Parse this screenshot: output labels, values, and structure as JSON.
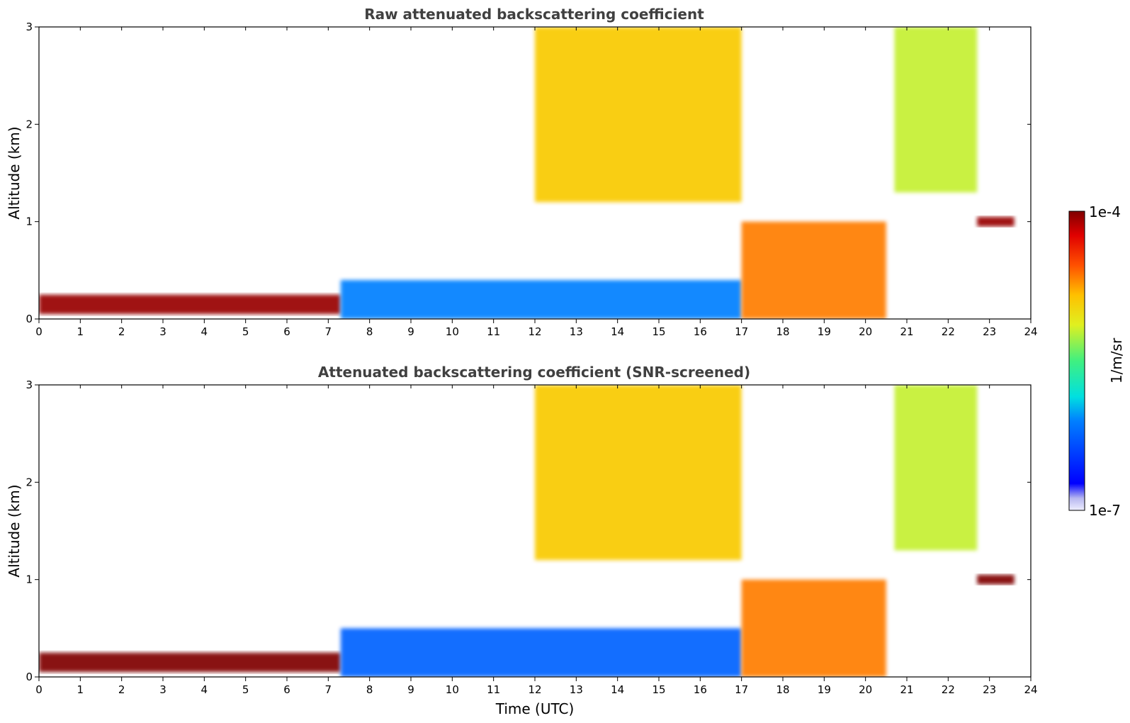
{
  "chart_data": [
    {
      "type": "heatmap",
      "title": "Raw attenuated backscattering coefficient",
      "xlabel": "",
      "ylabel": "Altitude (km)",
      "xlim": [
        0,
        24
      ],
      "ylim": [
        0,
        3
      ],
      "x_ticks": [
        "0",
        "1",
        "2",
        "3",
        "4",
        "5",
        "6",
        "7",
        "8",
        "9",
        "10",
        "11",
        "12",
        "13",
        "14",
        "15",
        "16",
        "17",
        "18",
        "19",
        "20",
        "21",
        "22",
        "23",
        "24"
      ],
      "y_ticks": [
        "0",
        "1",
        "2",
        "3"
      ],
      "grid": false,
      "features": [
        {
          "name": "boundary-layer",
          "x_range": [
            0,
            7.3
          ],
          "y_range": [
            0.05,
            0.25
          ],
          "level": 0.98
        },
        {
          "name": "aerosol-layer",
          "x_range": [
            7.3,
            17
          ],
          "y_range": [
            0,
            0.4
          ],
          "level": 0.3
        },
        {
          "name": "rain-column",
          "x_range": [
            17,
            20.5
          ],
          "y_range": [
            0,
            1.0
          ],
          "level": 0.78
        },
        {
          "name": "upper-cloud",
          "x_range": [
            12,
            17
          ],
          "y_range": [
            1.2,
            3.0
          ],
          "level": 0.7
        },
        {
          "name": "high-cloud",
          "x_range": [
            20.7,
            22.7
          ],
          "y_range": [
            1.3,
            3.0
          ],
          "level": 0.6
        },
        {
          "name": "cloud-base",
          "x_range": [
            22.7,
            23.6
          ],
          "y_range": [
            0.95,
            1.05
          ],
          "level": 0.98
        }
      ]
    },
    {
      "type": "heatmap",
      "title": "Attenuated backscattering coefficient (SNR-screened)",
      "xlabel": "Time (UTC)",
      "ylabel": "Altitude (km)",
      "xlim": [
        0,
        24
      ],
      "ylim": [
        0,
        3
      ],
      "x_ticks": [
        "0",
        "1",
        "2",
        "3",
        "4",
        "5",
        "6",
        "7",
        "8",
        "9",
        "10",
        "11",
        "12",
        "13",
        "14",
        "15",
        "16",
        "17",
        "18",
        "19",
        "20",
        "21",
        "22",
        "23",
        "24"
      ],
      "y_ticks": [
        "0",
        "1",
        "2",
        "3"
      ],
      "grid": false,
      "features": [
        {
          "name": "boundary-layer",
          "x_range": [
            0,
            7.3
          ],
          "y_range": [
            0.05,
            0.25
          ],
          "level": 1.0
        },
        {
          "name": "aerosol-layer",
          "x_range": [
            7.3,
            17
          ],
          "y_range": [
            0,
            0.5
          ],
          "level": 0.25
        },
        {
          "name": "rain-column",
          "x_range": [
            17,
            20.5
          ],
          "y_range": [
            0,
            1.0
          ],
          "level": 0.78
        },
        {
          "name": "upper-cloud",
          "x_range": [
            12,
            17
          ],
          "y_range": [
            1.2,
            3.0
          ],
          "level": 0.7
        },
        {
          "name": "high-cloud",
          "x_range": [
            20.7,
            22.7
          ],
          "y_range": [
            1.3,
            3.0
          ],
          "level": 0.6
        },
        {
          "name": "cloud-base",
          "x_range": [
            22.7,
            23.6
          ],
          "y_range": [
            0.95,
            1.05
          ],
          "level": 1.0
        }
      ]
    }
  ],
  "colorbar": {
    "max_label": "1e-4",
    "min_label": "1e-7",
    "unit_label": "1/m/sr",
    "colormap": "jet"
  }
}
